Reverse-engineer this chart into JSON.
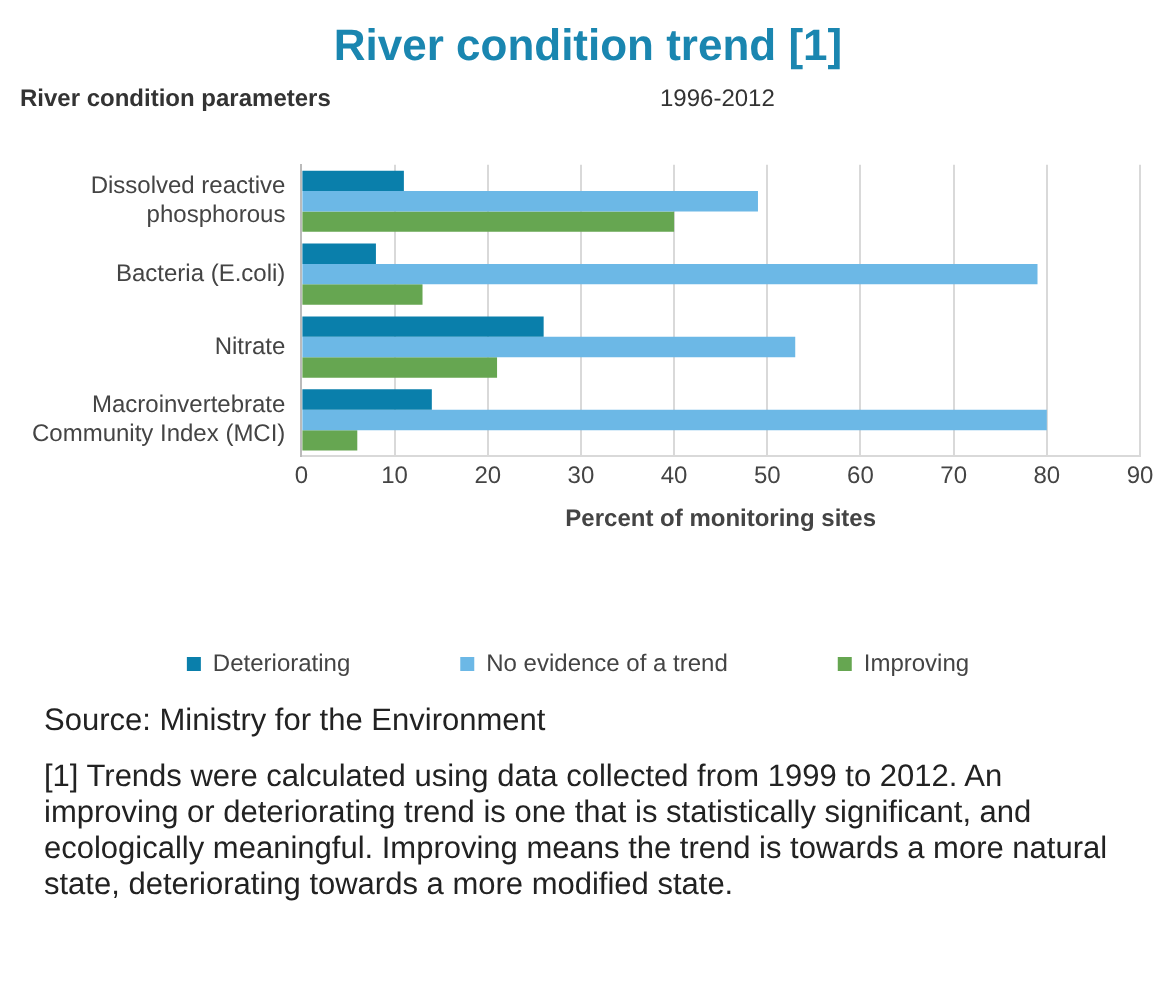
{
  "chart_data": {
    "type": "bar",
    "orientation": "horizontal",
    "title": "River condition trend [1]",
    "subtitle": "1996-2012",
    "ylabel": "River condition parameters",
    "xlabel": "Percent of monitoring sites",
    "categories": [
      "Dissolved reactive phosphorous",
      "Bacteria (E.coli)",
      "Nitrate",
      "Macroinvertebrate Community Index (MCI)"
    ],
    "series": [
      {
        "name": "Deteriorating",
        "color": "#0a7fab",
        "values": [
          11,
          8,
          26,
          14
        ]
      },
      {
        "name": "No evidence of a trend",
        "color": "#6cb8e6",
        "values": [
          49,
          79,
          53,
          80
        ]
      },
      {
        "name": "Improving",
        "color": "#66a651",
        "values": [
          40,
          13,
          21,
          6
        ]
      }
    ],
    "xlim": [
      0,
      90
    ],
    "xticks": [
      0,
      10,
      20,
      30,
      40,
      50,
      60,
      70,
      80,
      90
    ],
    "grid": "x",
    "legend": "bottom",
    "annotations": [
      "Source: Ministry for the Environment",
      "[1] Trends were calculated using data collected from 1999 to 2012. An improving or deteriorating trend is one that is statistically significant, and ecologically meaningful. Improving means the trend is towards a more natural state, deteriorating towards a more modified state."
    ]
  }
}
